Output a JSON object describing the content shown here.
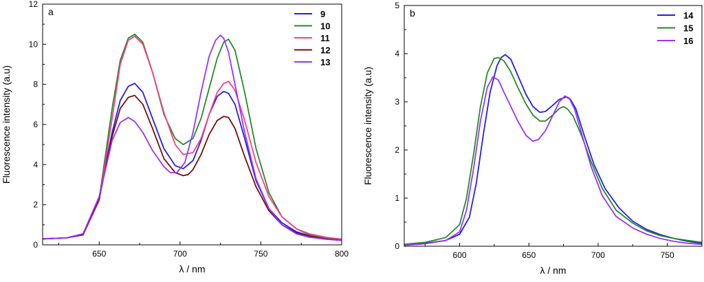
{
  "chart_data": [
    {
      "type": "line",
      "panel_label": "a",
      "xlabel": "λ / nm",
      "ylabel": "Fluorescence intensity (a.u)",
      "xlim": [
        615,
        800
      ],
      "ylim": [
        0,
        12
      ],
      "xticks": [
        650,
        700,
        750,
        800
      ],
      "yticks": [
        0,
        2,
        4,
        6,
        8,
        10,
        12
      ],
      "legend_position": "top-right",
      "series": [
        {
          "name": "9",
          "color": "#1f1fe6",
          "x": [
            615,
            630,
            640,
            650,
            658,
            663,
            668,
            672,
            677,
            683,
            690,
            697,
            702,
            708,
            713,
            718,
            723,
            727,
            730,
            734,
            740,
            747,
            755,
            763,
            772,
            780,
            790,
            800
          ],
          "y": [
            0.3,
            0.35,
            0.55,
            2.4,
            5.6,
            7.2,
            7.9,
            8.05,
            7.6,
            6.3,
            4.8,
            3.95,
            3.8,
            4.2,
            5.2,
            6.5,
            7.4,
            7.65,
            7.55,
            7.0,
            5.3,
            3.2,
            1.8,
            1.1,
            0.65,
            0.45,
            0.32,
            0.25
          ]
        },
        {
          "name": "10",
          "color": "#228b22",
          "x": [
            615,
            630,
            640,
            650,
            658,
            663,
            668,
            672,
            677,
            683,
            690,
            697,
            702,
            708,
            713,
            718,
            723,
            727,
            730,
            734,
            740,
            747,
            755,
            763,
            772,
            780,
            790,
            800
          ],
          "y": [
            0.3,
            0.35,
            0.5,
            2.3,
            6.8,
            9.2,
            10.3,
            10.5,
            10.1,
            8.6,
            6.5,
            5.3,
            5.0,
            5.3,
            6.3,
            7.8,
            9.3,
            10.1,
            10.25,
            9.7,
            7.6,
            4.8,
            2.6,
            1.4,
            0.8,
            0.5,
            0.35,
            0.28
          ]
        },
        {
          "name": "11",
          "color": "#ff3c8c",
          "x": [
            615,
            630,
            640,
            650,
            658,
            663,
            668,
            672,
            677,
            683,
            690,
            697,
            702,
            708,
            713,
            718,
            723,
            727,
            730,
            734,
            740,
            747,
            755,
            763,
            772,
            780,
            790,
            800
          ],
          "y": [
            0.3,
            0.35,
            0.5,
            2.2,
            6.3,
            9.0,
            10.2,
            10.4,
            10.0,
            8.6,
            6.6,
            5.0,
            4.5,
            4.6,
            5.3,
            6.5,
            7.6,
            8.05,
            8.15,
            7.7,
            6.2,
            4.1,
            2.4,
            1.4,
            0.8,
            0.55,
            0.38,
            0.28
          ]
        },
        {
          "name": "12",
          "color": "#7a0a0a",
          "x": [
            615,
            630,
            640,
            650,
            658,
            663,
            668,
            672,
            677,
            683,
            690,
            697,
            702,
            705,
            708,
            713,
            718,
            723,
            727,
            730,
            734,
            740,
            747,
            755,
            763,
            772,
            780,
            790,
            800
          ],
          "y": [
            0.3,
            0.35,
            0.5,
            2.3,
            5.4,
            6.8,
            7.35,
            7.45,
            7.0,
            5.8,
            4.3,
            3.6,
            3.45,
            3.5,
            3.75,
            4.5,
            5.5,
            6.2,
            6.4,
            6.35,
            5.8,
            4.4,
            2.9,
            1.7,
            1.0,
            0.6,
            0.42,
            0.3,
            0.23
          ]
        },
        {
          "name": "13",
          "color": "#9b30ff",
          "x": [
            615,
            630,
            640,
            650,
            658,
            663,
            668,
            672,
            677,
            683,
            690,
            694,
            698,
            703,
            708,
            713,
            718,
            722,
            725,
            727,
            730,
            734,
            740,
            747,
            755,
            763,
            772,
            780,
            790,
            800
          ],
          "y": [
            0.3,
            0.35,
            0.55,
            2.4,
            5.2,
            6.1,
            6.35,
            6.15,
            5.6,
            4.7,
            3.9,
            3.6,
            3.6,
            4.1,
            5.6,
            7.6,
            9.4,
            10.2,
            10.45,
            10.3,
            9.6,
            8.0,
            5.6,
            3.3,
            1.8,
            1.0,
            0.55,
            0.38,
            0.28,
            0.22
          ]
        }
      ]
    },
    {
      "type": "line",
      "panel_label": "b",
      "xlabel": "λ / nm",
      "ylabel": "Fluorescence intensity (a.u)",
      "xlim": [
        560,
        775
      ],
      "ylim": [
        0,
        5
      ],
      "xticks": [
        600,
        650,
        700,
        750
      ],
      "yticks": [
        0,
        1,
        2,
        3,
        4,
        5
      ],
      "legend_position": "top-right",
      "series": [
        {
          "name": "14",
          "color": "#1f1fe6",
          "x": [
            560,
            575,
            590,
            600,
            607,
            612,
            617,
            622,
            627,
            630,
            633,
            637,
            642,
            648,
            653,
            658,
            662,
            667,
            672,
            677,
            680,
            684,
            690,
            697,
            705,
            715,
            725,
            735,
            745,
            755,
            765,
            775
          ],
          "y": [
            0.03,
            0.06,
            0.12,
            0.25,
            0.6,
            1.3,
            2.3,
            3.2,
            3.75,
            3.92,
            3.98,
            3.88,
            3.55,
            3.15,
            2.9,
            2.78,
            2.8,
            2.92,
            3.05,
            3.1,
            3.05,
            2.85,
            2.3,
            1.7,
            1.2,
            0.8,
            0.52,
            0.35,
            0.24,
            0.16,
            0.1,
            0.06
          ]
        },
        {
          "name": "15",
          "color": "#228b22",
          "x": [
            560,
            575,
            590,
            600,
            605,
            610,
            615,
            620,
            625,
            628,
            632,
            637,
            642,
            648,
            653,
            658,
            662,
            667,
            672,
            675,
            678,
            682,
            688,
            695,
            703,
            713,
            725,
            735,
            745,
            755,
            765,
            775
          ],
          "y": [
            0.04,
            0.08,
            0.18,
            0.45,
            1.0,
            1.9,
            2.9,
            3.6,
            3.9,
            3.92,
            3.85,
            3.62,
            3.3,
            2.95,
            2.72,
            2.6,
            2.6,
            2.72,
            2.86,
            2.9,
            2.85,
            2.7,
            2.3,
            1.75,
            1.2,
            0.75,
            0.48,
            0.32,
            0.22,
            0.16,
            0.12,
            0.08
          ]
        },
        {
          "name": "16",
          "color": "#9b30ff",
          "x": [
            560,
            575,
            590,
            600,
            605,
            610,
            615,
            620,
            624,
            628,
            632,
            637,
            642,
            648,
            653,
            657,
            662,
            667,
            672,
            676,
            679,
            683,
            688,
            695,
            703,
            713,
            725,
            735,
            745,
            755,
            765,
            775
          ],
          "y": [
            0.02,
            0.05,
            0.12,
            0.3,
            0.75,
            1.6,
            2.6,
            3.3,
            3.52,
            3.45,
            3.2,
            2.9,
            2.6,
            2.3,
            2.18,
            2.22,
            2.4,
            2.7,
            3.0,
            3.12,
            3.08,
            2.85,
            2.35,
            1.65,
            1.05,
            0.62,
            0.38,
            0.25,
            0.16,
            0.1,
            0.06,
            0.04
          ]
        }
      ]
    }
  ]
}
